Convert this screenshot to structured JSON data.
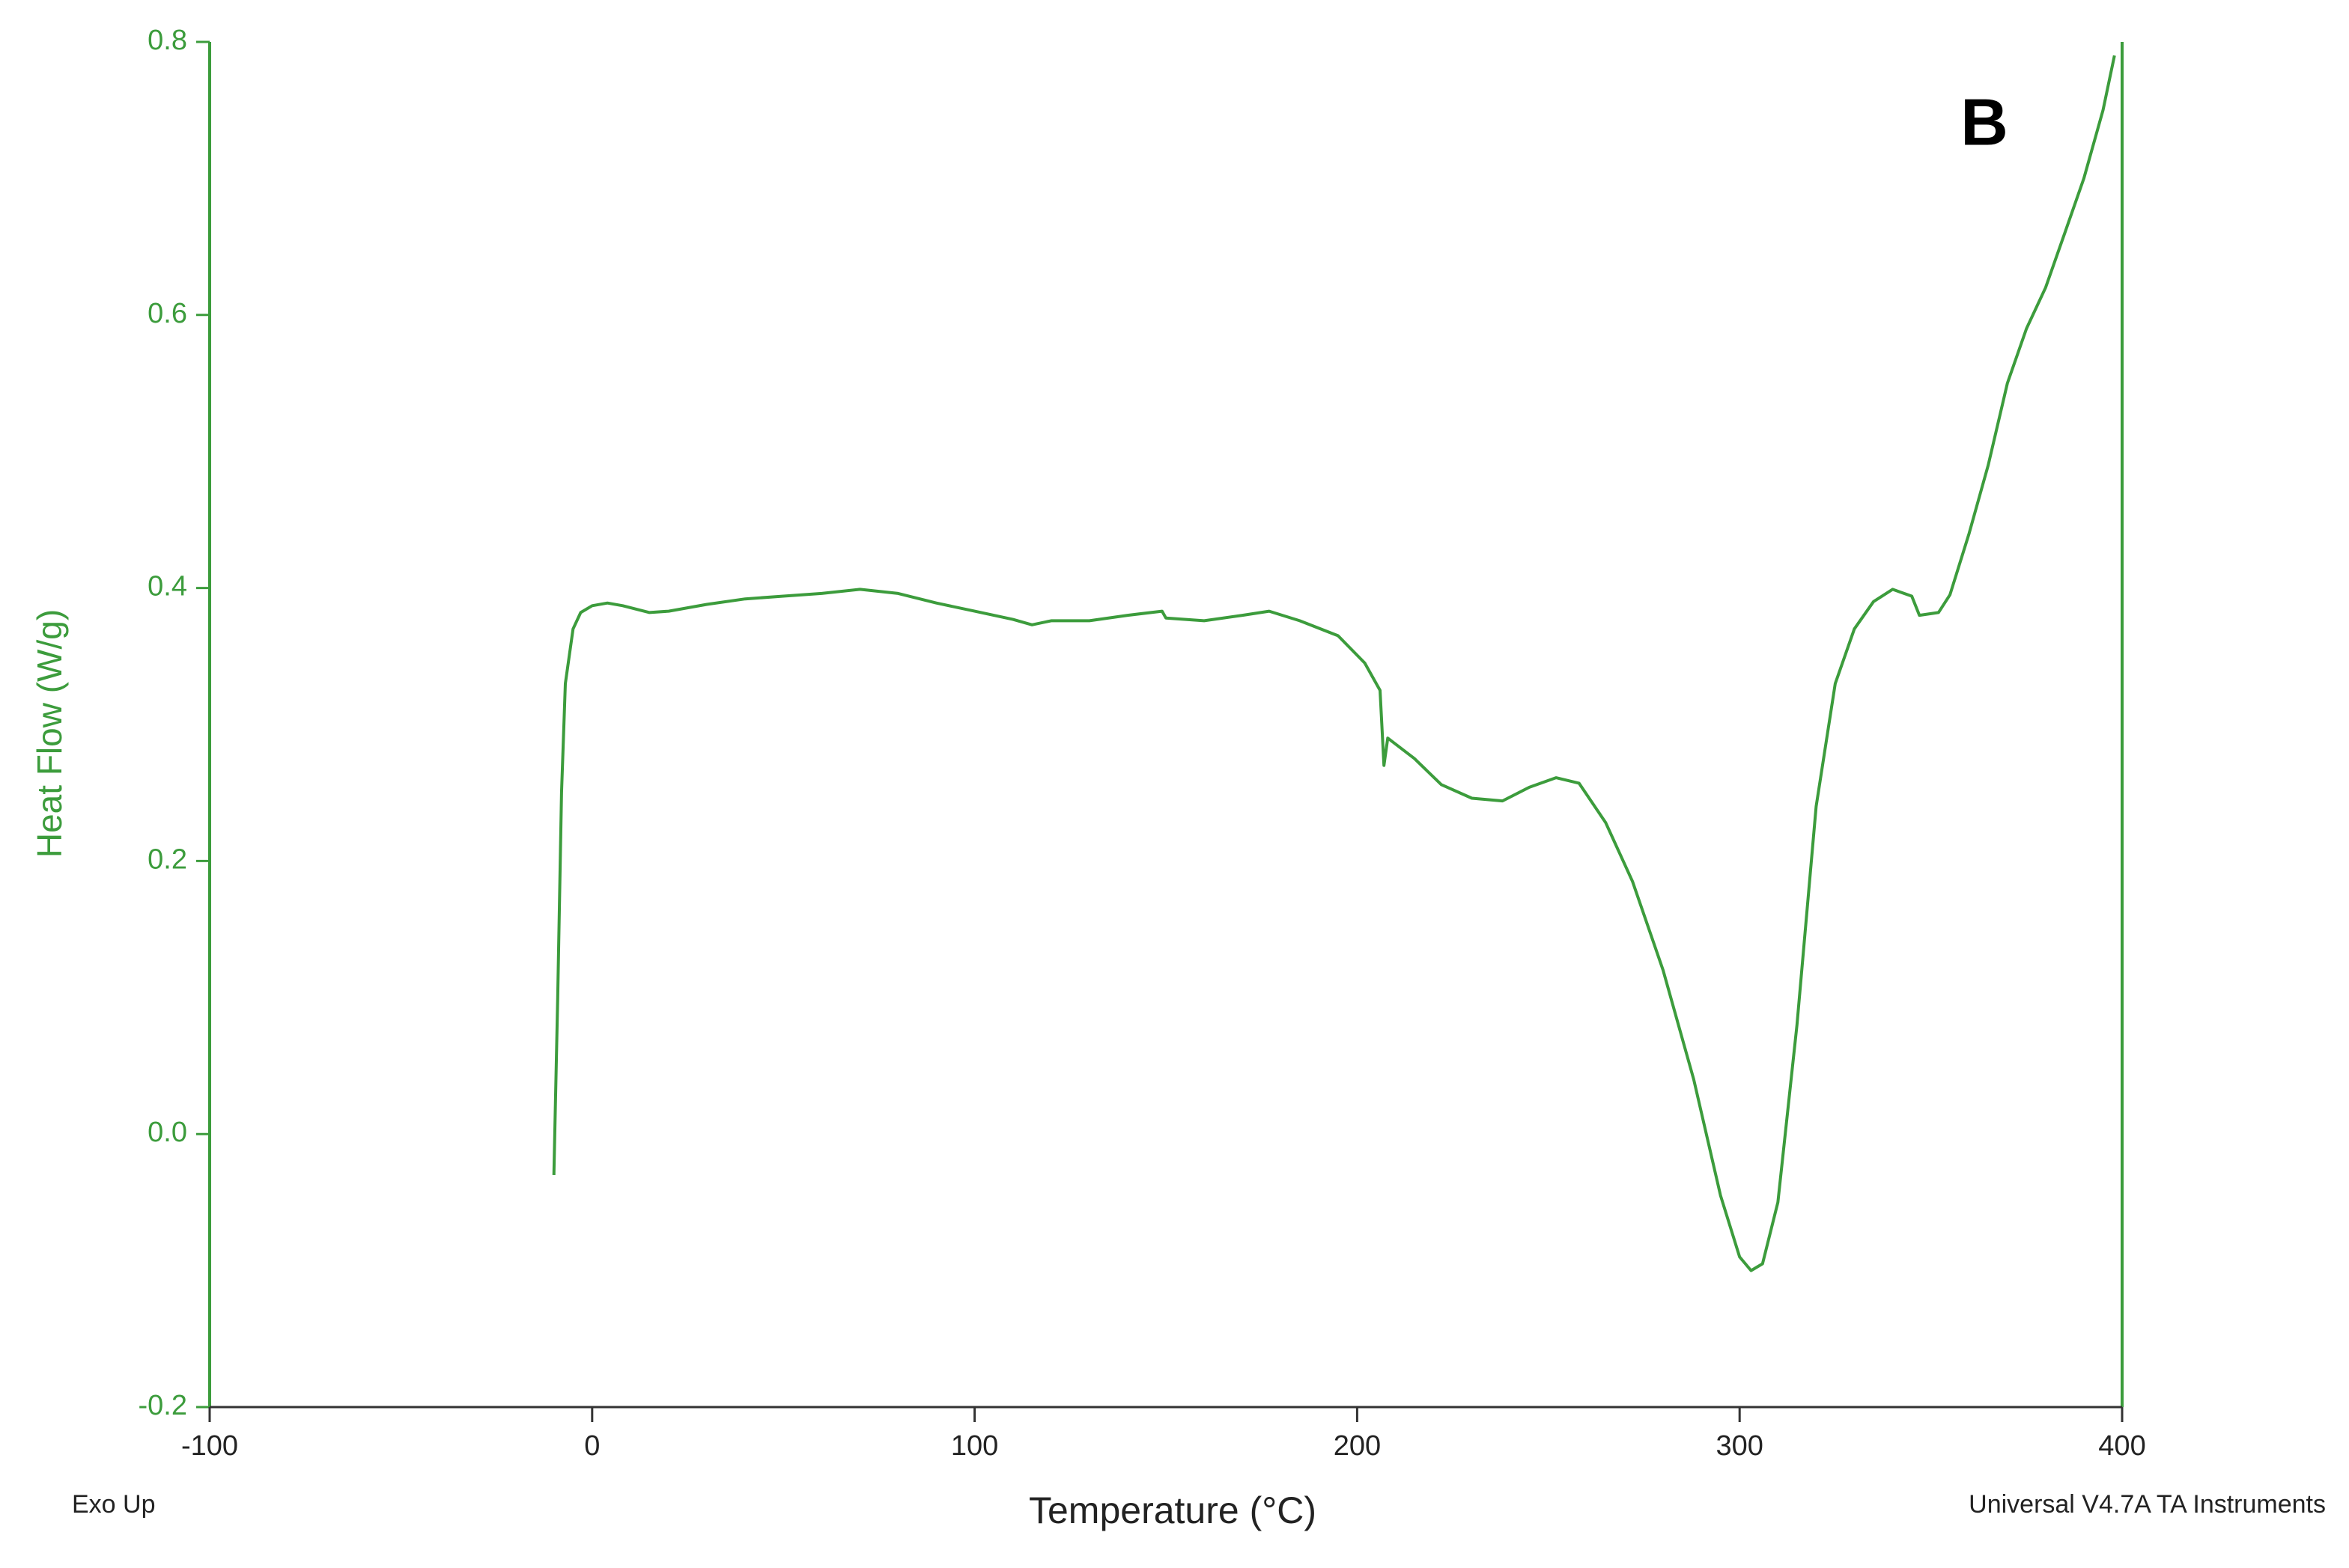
{
  "chart_data": {
    "type": "line",
    "annotation": "B",
    "xlabel": "Temperature (°C)",
    "ylabel": "Heat Flow (W/g)",
    "footnote_left": "Exo Up",
    "footnote_right": "Universal V4.7A TA Instruments",
    "color": "#3c9c3c",
    "x": [
      -10,
      -9,
      -8,
      -7,
      -5,
      -3,
      0,
      4,
      8,
      15,
      20,
      30,
      40,
      50,
      60,
      70,
      80,
      90,
      100,
      110,
      115,
      120,
      130,
      140,
      149,
      150,
      160,
      170,
      177,
      185,
      195,
      202,
      206,
      207,
      208,
      215,
      222,
      230,
      238,
      245,
      252,
      258,
      265,
      272,
      280,
      288,
      295,
      300,
      303,
      306,
      310,
      315,
      320,
      325,
      330,
      335,
      340,
      345,
      347,
      352,
      355,
      360,
      365,
      370,
      375,
      380,
      385,
      390,
      395,
      398
    ],
    "values": [
      -0.03,
      0.1,
      0.25,
      0.33,
      0.37,
      0.382,
      0.387,
      0.389,
      0.387,
      0.382,
      0.383,
      0.388,
      0.392,
      0.394,
      0.396,
      0.399,
      0.396,
      0.389,
      0.383,
      0.377,
      0.373,
      0.376,
      0.376,
      0.38,
      0.383,
      0.378,
      0.376,
      0.38,
      0.383,
      0.376,
      0.365,
      0.345,
      0.325,
      0.27,
      0.29,
      0.275,
      0.256,
      0.246,
      0.244,
      0.254,
      0.261,
      0.257,
      0.228,
      0.185,
      0.12,
      0.04,
      -0.045,
      -0.09,
      -0.1,
      -0.095,
      -0.05,
      0.08,
      0.24,
      0.33,
      0.37,
      0.39,
      0.399,
      0.394,
      0.38,
      0.382,
      0.395,
      0.44,
      0.49,
      0.55,
      0.59,
      0.62,
      0.66,
      0.7,
      0.75,
      0.79
    ],
    "xlim": [
      -100,
      400
    ],
    "xticks": [
      -100,
      0,
      100,
      200,
      300,
      400
    ],
    "ylim": [
      -0.2,
      0.8
    ],
    "yticks": [
      -0.2,
      {
        "value": 0,
        "label": "0.0"
      },
      0.2,
      0.4,
      0.6,
      0.8
    ]
  }
}
